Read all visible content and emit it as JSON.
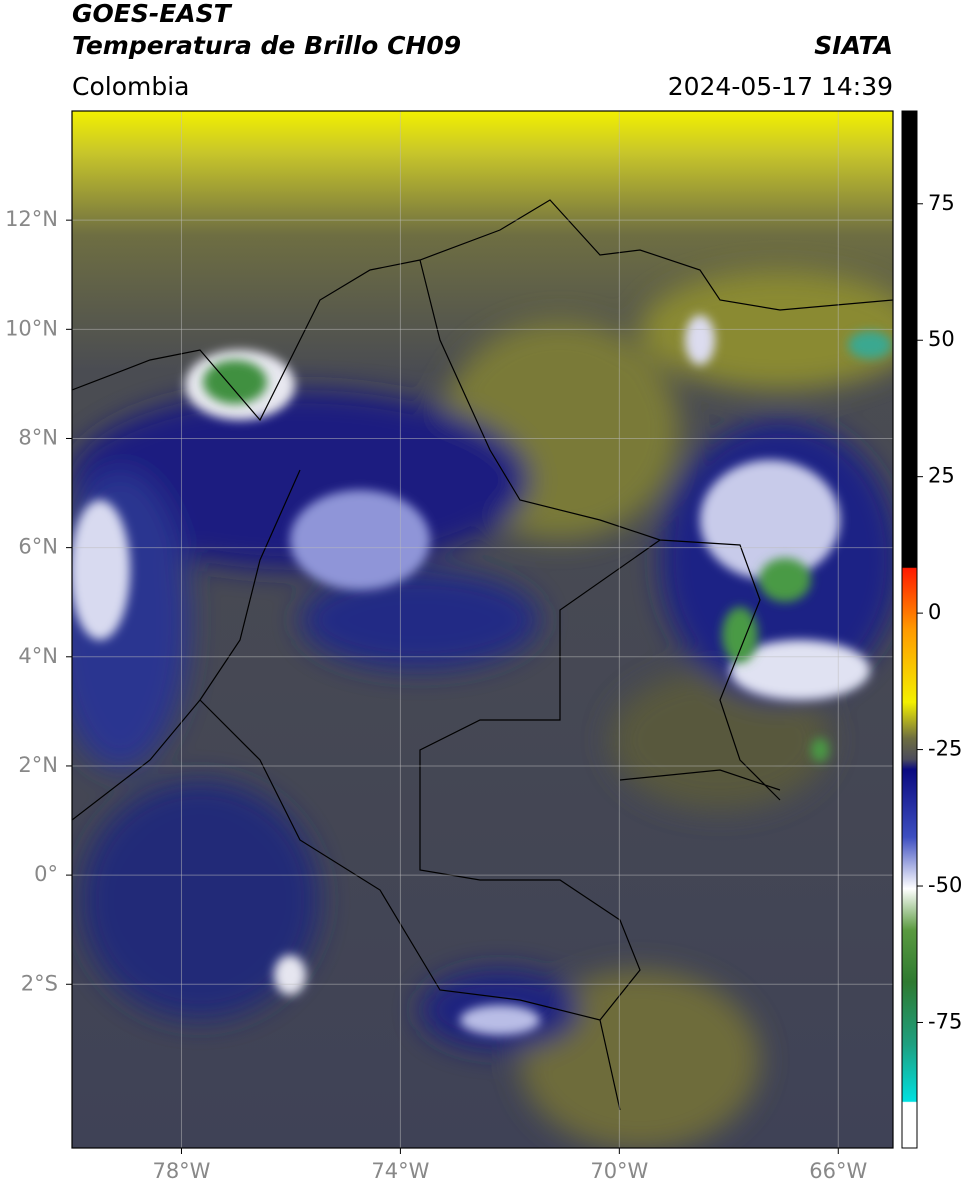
{
  "map": {
    "title": "GOES-EAST",
    "subtitle": "Temperatura de Brillo CH09",
    "source": "SIATA",
    "region": "Colombia",
    "datetime": "2024-05-17 14:39",
    "xlim": [
      -80,
      -65
    ],
    "ylim": [
      -5,
      14
    ],
    "xticks": [
      {
        "value": -78,
        "label": "78°W"
      },
      {
        "value": -74,
        "label": "74°W"
      },
      {
        "value": -70,
        "label": "70°W"
      },
      {
        "value": -66,
        "label": "66°W"
      }
    ],
    "yticks": [
      {
        "value": 12,
        "label": "12°N"
      },
      {
        "value": 10,
        "label": "10°N"
      },
      {
        "value": 8,
        "label": "8°N"
      },
      {
        "value": 6,
        "label": "6°N"
      },
      {
        "value": 4,
        "label": "4°N"
      },
      {
        "value": 2,
        "label": "2°N"
      },
      {
        "value": 0,
        "label": "0°"
      },
      {
        "value": -2,
        "label": "2°S"
      }
    ],
    "grid": true,
    "colorbar": {
      "lim": [
        -98,
        92
      ],
      "ticks": [
        75,
        50,
        25,
        0,
        -25,
        -50,
        -75
      ]
    }
  }
}
